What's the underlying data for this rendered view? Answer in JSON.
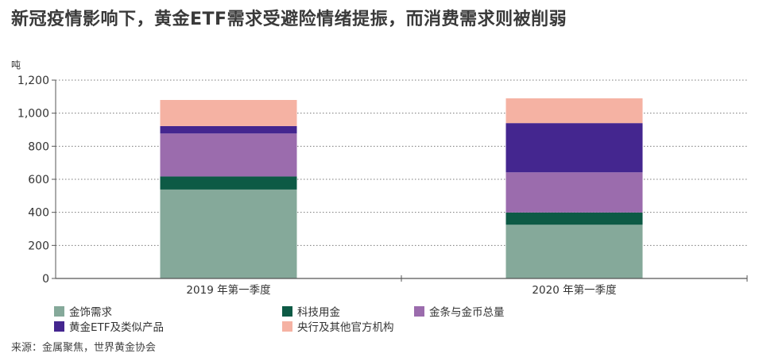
{
  "title": "新冠疫情影响下，黄金ETF需求受避险情绪提振，而消费需求则被削弱",
  "source": "来源：金属聚焦，世界黄金协会",
  "chart_data": {
    "type": "bar",
    "stacked": true,
    "ylabel": "吨",
    "ylim": [
      0,
      1200
    ],
    "yticks": [
      "0",
      "200",
      "400",
      "600",
      "800",
      "1,000",
      "1,200"
    ],
    "ytick_values": [
      0,
      200,
      400,
      600,
      800,
      1000,
      1200
    ],
    "grid": true,
    "legend_position": "bottom",
    "categories": [
      "2019 年第一季度",
      "2020 年第一季度"
    ],
    "series": [
      {
        "name": "金饰需求",
        "color": "#85a99a",
        "values": [
          538,
          325
        ]
      },
      {
        "name": "科技用金",
        "color": "#0d5a45",
        "values": [
          79,
          74
        ]
      },
      {
        "name": "金条与金币总量",
        "color": "#9b6cad",
        "values": [
          260,
          243
        ]
      },
      {
        "name": "黄金ETF及类似产品",
        "color": "#44268f",
        "values": [
          45,
          298
        ]
      },
      {
        "name": "央行及其他官方机构",
        "color": "#f5b2a3",
        "values": [
          158,
          150
        ]
      }
    ]
  }
}
